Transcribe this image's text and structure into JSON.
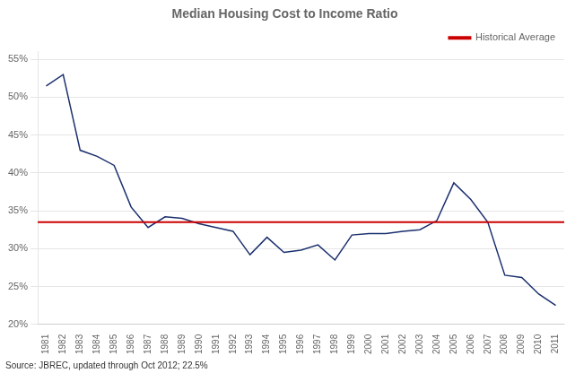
{
  "chart_data": {
    "type": "line",
    "title": "Median Housing Cost to Income Ratio",
    "annotations": [
      "Source: JBREC, updated through Oct 2012; 22.5%"
    ],
    "categories": [
      "1981",
      "1982",
      "1983",
      "1984",
      "1985",
      "1986",
      "1987",
      "1988",
      "1989",
      "1990",
      "1991",
      "1992",
      "1993",
      "1994",
      "1995",
      "1996",
      "1997",
      "1998",
      "1999",
      "2000",
      "2001",
      "2002",
      "2003",
      "2004",
      "2005",
      "2006",
      "2007",
      "2008",
      "2009",
      "2010",
      "2011"
    ],
    "values": [
      51.5,
      53.0,
      43.0,
      42.2,
      41.0,
      35.5,
      32.8,
      34.2,
      34.0,
      33.3,
      32.8,
      32.3,
      29.2,
      31.5,
      29.5,
      29.8,
      30.5,
      28.5,
      31.8,
      32.0,
      32.0,
      32.3,
      32.5,
      33.7,
      38.7,
      36.5,
      33.5,
      26.5,
      26.2,
      24.0,
      22.5
    ],
    "color": "#1a2f6e",
    "reference_line": {
      "name": "Historical Average",
      "value": 33.5,
      "color": "#cc0000"
    },
    "ylim": [
      20,
      56
    ],
    "yticks": [
      {
        "value": 20,
        "label": "20%"
      },
      {
        "value": 25,
        "label": "25%"
      },
      {
        "value": 30,
        "label": "30%"
      },
      {
        "value": 35,
        "label": "35%"
      },
      {
        "value": 40,
        "label": "40%"
      },
      {
        "value": 45,
        "label": "45%"
      },
      {
        "value": 50,
        "label": "50%"
      },
      {
        "value": 55,
        "label": "55%"
      }
    ],
    "grid": "y",
    "legend": "upper right"
  }
}
